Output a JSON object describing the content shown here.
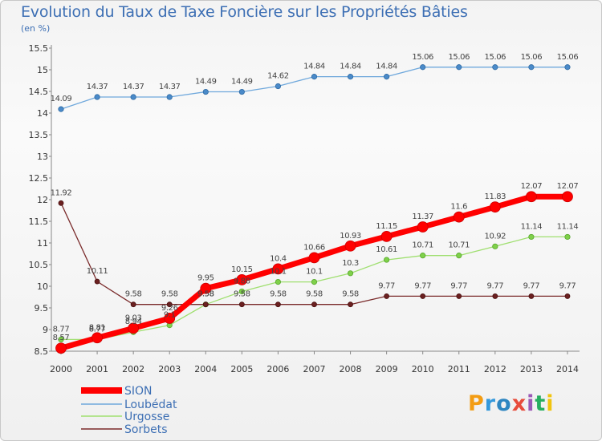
{
  "chart_data": {
    "type": "line",
    "title": "Evolution du Taux de Taxe Foncière sur les Propriétés Bâties",
    "subtitle": "(en %)",
    "x": [
      "2000",
      "2001",
      "2002",
      "2003",
      "2004",
      "2005",
      "2006",
      "2007",
      "2008",
      "2009",
      "2010",
      "2011",
      "2012",
      "2013",
      "2014"
    ],
    "ylim": [
      8.5,
      15.5
    ],
    "yticks": [
      "8.5",
      "9",
      "9.5",
      "10",
      "10.5",
      "11",
      "11.5",
      "12",
      "12.5",
      "13",
      "13.5",
      "14",
      "14.5",
      "15",
      "15.5"
    ],
    "grid": false,
    "legend_position": "bottom-left",
    "series": [
      {
        "name": "SION",
        "color": "#ff0000",
        "values": [
          8.57,
          8.81,
          9.03,
          9.26,
          9.95,
          10.15,
          10.4,
          10.66,
          10.93,
          11.15,
          11.37,
          11.6,
          11.83,
          12.07,
          12.07
        ],
        "labels": [
          "8.57",
          "8.81",
          "9.03",
          "9.26",
          "9.95",
          "10.15",
          "10.4",
          "10.66",
          "10.93",
          "11.15",
          "11.37",
          "11.6",
          "11.83",
          "12.07",
          "12.07"
        ]
      },
      {
        "name": "Loubédat",
        "color": "#6fa8dc",
        "values": [
          14.09,
          14.37,
          14.37,
          14.37,
          14.49,
          14.49,
          14.62,
          14.84,
          14.84,
          14.84,
          15.06,
          15.06,
          15.06,
          15.06,
          15.06
        ],
        "labels": [
          "14.09",
          "14.37",
          "14.37",
          "14.37",
          "14.49",
          "14.49",
          "14.62",
          "14.84",
          "14.84",
          "14.84",
          "15.06",
          "15.06",
          "15.06",
          "15.06",
          "15.06"
        ]
      },
      {
        "name": "Urgosse",
        "color": "#9fdf6f",
        "values": [
          8.77,
          8.77,
          8.94,
          9.1,
          9.58,
          9.88,
          10.1,
          10.1,
          10.3,
          10.61,
          10.71,
          10.71,
          10.92,
          11.14,
          11.14
        ],
        "labels": [
          "8.77",
          "8.77",
          "8.94",
          "9.1",
          "9.58",
          "9.88",
          "10.1",
          "10.1",
          "10.3",
          "10.61",
          "10.71",
          "10.71",
          "10.92",
          "11.14",
          "11.14"
        ]
      },
      {
        "name": "Sorbets",
        "color": "#7a2b2b",
        "values": [
          11.92,
          10.11,
          9.58,
          9.58,
          9.58,
          9.58,
          9.58,
          9.58,
          9.58,
          9.77,
          9.77,
          9.77,
          9.77,
          9.77,
          9.77
        ],
        "labels": [
          "11.92",
          "10.11",
          "9.58",
          "9.58",
          "9.58",
          "9.58",
          "9.58",
          "9.58",
          "9.58",
          "9.77",
          "9.77",
          "9.77",
          "9.77",
          "9.77",
          "9.77"
        ]
      }
    ]
  },
  "logo": {
    "letters": [
      "P",
      "r",
      "o",
      "x",
      "i",
      "t",
      "i"
    ],
    "colors": [
      "#f39c12",
      "#3498db",
      "#2e86c1",
      "#e74c3c",
      "#9b59b6",
      "#27ae60",
      "#f1c40f"
    ]
  }
}
